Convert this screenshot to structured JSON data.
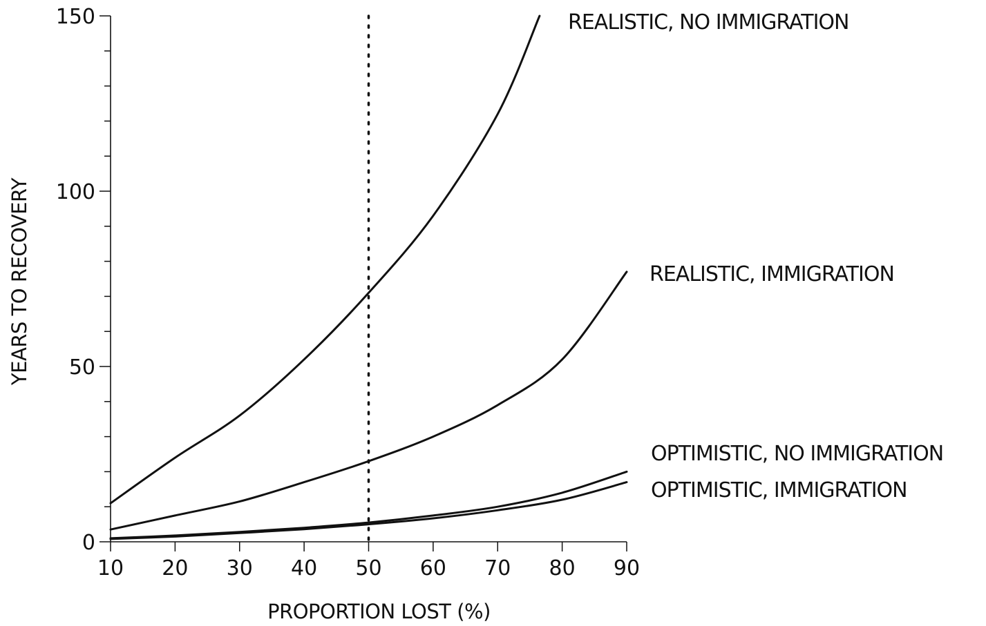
{
  "chart_data": {
    "type": "line",
    "title": "",
    "xlabel": "PROPORTION LOST (%)",
    "ylabel": "YEARS TO RECOVERY",
    "xlim": [
      10,
      90
    ],
    "ylim": [
      0,
      150
    ],
    "x_ticks": [
      10,
      20,
      30,
      40,
      50,
      60,
      70,
      80,
      90
    ],
    "y_ticks": [
      0,
      50,
      100,
      150
    ],
    "y_minor_step": 10,
    "grid": false,
    "legend": "direct labels at line ends (right)",
    "reference_line": {
      "orientation": "vertical",
      "x": 50,
      "style": "dotted"
    },
    "series": [
      {
        "name": "REALISTIC, NO IMMIGRATION",
        "x": [
          10,
          20,
          30,
          40,
          50,
          60,
          70,
          76.5
        ],
        "y": [
          11,
          24,
          36,
          52,
          71,
          93,
          122,
          150
        ]
      },
      {
        "name": "REALISTIC, IMMIGRATION",
        "x": [
          10,
          20,
          30,
          40,
          50,
          60,
          70,
          80,
          90
        ],
        "y": [
          3.5,
          7.5,
          11.5,
          17,
          23,
          30,
          39,
          52,
          77
        ]
      },
      {
        "name": "OPTIMISTIC, NO IMMIGRATION",
        "x": [
          10,
          20,
          30,
          40,
          50,
          60,
          70,
          80,
          90
        ],
        "y": [
          1,
          1.8,
          2.8,
          4,
          5.5,
          7.5,
          10,
          14,
          20
        ]
      },
      {
        "name": "OPTIMISTIC, IMMIGRATION",
        "x": [
          10,
          20,
          30,
          40,
          50,
          60,
          70,
          80,
          90
        ],
        "y": [
          0.8,
          1.5,
          2.5,
          3.6,
          5,
          6.7,
          9,
          12,
          17
        ]
      }
    ]
  }
}
